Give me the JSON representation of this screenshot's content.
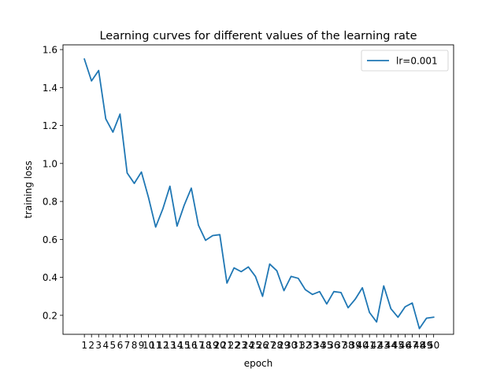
{
  "chart_data": {
    "type": "line",
    "title": "Learning curves for different values of the learning rate",
    "xlabel": "epoch",
    "ylabel": "training loss",
    "x": [
      1,
      2,
      3,
      4,
      5,
      6,
      7,
      8,
      9,
      10,
      11,
      12,
      13,
      14,
      15,
      16,
      17,
      18,
      19,
      20,
      21,
      22,
      23,
      24,
      25,
      26,
      27,
      28,
      29,
      30,
      31,
      32,
      33,
      34,
      35,
      36,
      37,
      38,
      39,
      40,
      41,
      42,
      43,
      44,
      45,
      46,
      47,
      48,
      49,
      50
    ],
    "xticks": [
      "1",
      "2",
      "3",
      "4",
      "5",
      "6",
      "7",
      "8",
      "9",
      "10",
      "11",
      "12",
      "13",
      "14",
      "15",
      "16",
      "17",
      "18",
      "19",
      "20",
      "21",
      "22",
      "23",
      "24",
      "25",
      "26",
      "27",
      "28",
      "29",
      "30",
      "31",
      "32",
      "33",
      "34",
      "35",
      "36",
      "37",
      "38",
      "39",
      "40",
      "41",
      "42",
      "43",
      "44",
      "45",
      "46",
      "47",
      "48",
      "49",
      "50"
    ],
    "xlim": [
      -2.0,
      52.8
    ],
    "ylim": [
      0.1,
      1.625
    ],
    "yticks": [
      0.2,
      0.4,
      0.6,
      0.8,
      1.0,
      1.2,
      1.4,
      1.6
    ],
    "yticklabels": [
      "0.2",
      "0.4",
      "0.6",
      "0.8",
      "1.0",
      "1.2",
      "1.4",
      "1.6"
    ],
    "grid": false,
    "legend_position": "top-right",
    "series": [
      {
        "name": "lr=0.001",
        "color": "#1f77b4",
        "values": [
          1.55,
          1.435,
          1.49,
          1.235,
          1.165,
          1.26,
          0.95,
          0.895,
          0.955,
          0.82,
          0.665,
          0.76,
          0.88,
          0.67,
          0.78,
          0.87,
          0.675,
          0.595,
          0.62,
          0.625,
          0.37,
          0.45,
          0.43,
          0.455,
          0.405,
          0.3,
          0.47,
          0.435,
          0.33,
          0.405,
          0.395,
          0.335,
          0.31,
          0.325,
          0.26,
          0.325,
          0.32,
          0.24,
          0.285,
          0.345,
          0.215,
          0.165,
          0.355,
          0.235,
          0.19,
          0.245,
          0.265,
          0.13,
          0.185,
          0.19
        ]
      }
    ]
  }
}
